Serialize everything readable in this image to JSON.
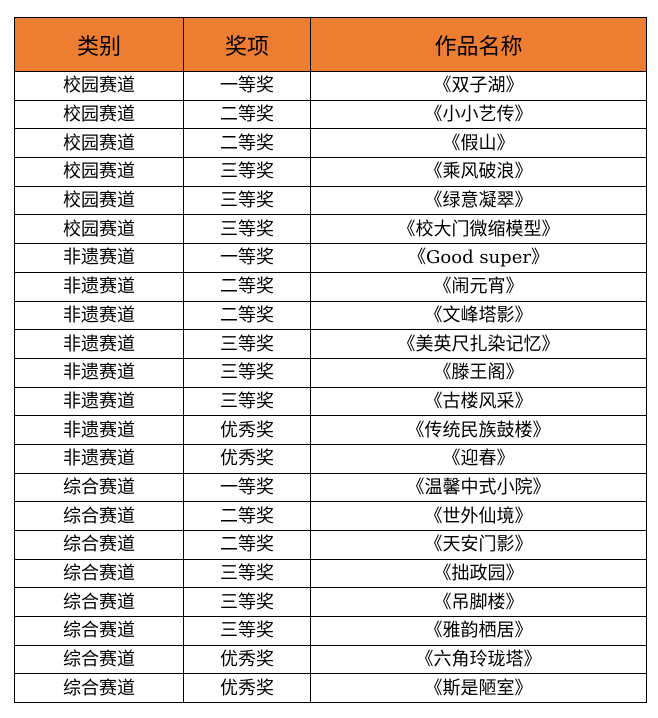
{
  "table": {
    "header": [
      "类别",
      "奖项",
      "作品名称"
    ],
    "rows": [
      [
        "校园赛道",
        "一等奖",
        "《双子湖》"
      ],
      [
        "校园赛道",
        "二等奖",
        "《小小艺传》"
      ],
      [
        "校园赛道",
        "二等奖",
        "《假山》"
      ],
      [
        "校园赛道",
        "三等奖",
        "《乘风破浪》"
      ],
      [
        "校园赛道",
        "三等奖",
        "《绿意凝翠》"
      ],
      [
        "校园赛道",
        "三等奖",
        "《校大门微缩模型》"
      ],
      [
        "非遗赛道",
        "一等奖",
        "《Good super》"
      ],
      [
        "非遗赛道",
        "二等奖",
        "《闹元宵》"
      ],
      [
        "非遗赛道",
        "二等奖",
        "《文峰塔影》"
      ],
      [
        "非遗赛道",
        "三等奖",
        "《美英尺扎染记忆》"
      ],
      [
        "非遗赛道",
        "三等奖",
        "《滕王阁》"
      ],
      [
        "非遗赛道",
        "三等奖",
        "《古楼风采》"
      ],
      [
        "非遗赛道",
        "优秀奖",
        "《传统民族鼓楼》"
      ],
      [
        "非遗赛道",
        "优秀奖",
        "《迎春》"
      ],
      [
        "综合赛道",
        "一等奖",
        "《温馨中式小院》"
      ],
      [
        "综合赛道",
        "二等奖",
        "《世外仙境》"
      ],
      [
        "综合赛道",
        "二等奖",
        "《天安门影》"
      ],
      [
        "综合赛道",
        "三等奖",
        "《拙政园》"
      ],
      [
        "综合赛道",
        "三等奖",
        "《吊脚楼》"
      ],
      [
        "综合赛道",
        "三等奖",
        "《雅韵栖居》"
      ],
      [
        "综合赛道",
        "优秀奖",
        "《六角玲珑塔》"
      ],
      [
        "综合赛道",
        "优秀奖",
        "《斯是陋室》"
      ]
    ]
  }
}
